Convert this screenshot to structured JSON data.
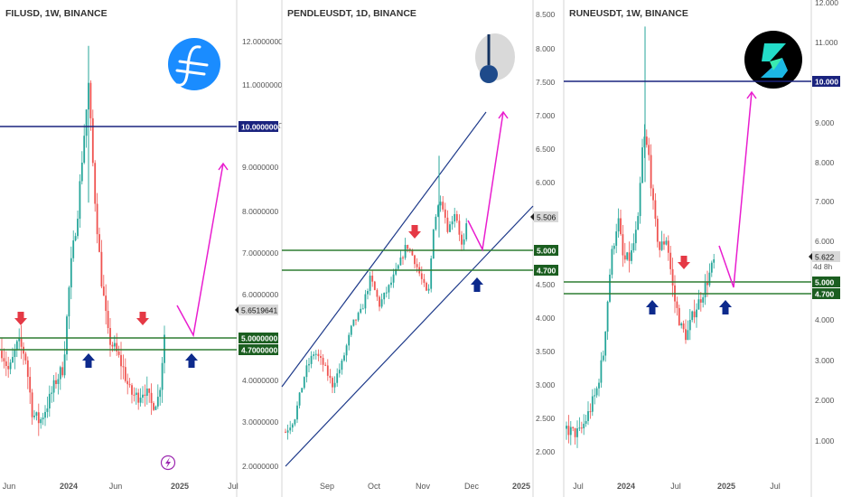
{
  "colors": {
    "up": "#26a69a",
    "down": "#ef5350",
    "level_line": "#2e7d32",
    "level_badge": "#1b5e20",
    "resistance": "#1a237e",
    "trend": "#1e3a8a",
    "projection": "#e91ecf",
    "arrow_down": "#e53945",
    "arrow_up": "#0d2a8c",
    "price_badge": "#d8d8d8",
    "axis_text": "#555555"
  },
  "chart_data": [
    {
      "type": "candlestick",
      "title": "FILUSD, 1W, BINANCE",
      "symbol_icon": "filecoin-logo-icon",
      "x_labels": [
        "Jun",
        "2024",
        "Jun",
        "2025",
        "Jul"
      ],
      "y_ticks": [
        "2.0000000",
        "3.0000000",
        "4.0000000",
        "5.0000000",
        "6.0000000",
        "7.0000000",
        "8.0000000",
        "9.0000000",
        "10.0000000",
        "11.0000000",
        "12.0000000"
      ],
      "ylim": [
        1.8,
        12.4
      ],
      "levels": [
        {
          "label": "5.0000000",
          "value": 5.0
        },
        {
          "label": "4.7000000",
          "value": 4.7
        }
      ],
      "resistance": {
        "label": "10.0000000",
        "value": 10.0
      },
      "last_price": {
        "label": "5.6519641",
        "value": 5.652
      },
      "annotation_icon": "lightning-bolt-icon"
    },
    {
      "type": "candlestick",
      "title": "PENDLEUSDT, 1D, BINANCE",
      "symbol_icon": "pendle-logo-icon",
      "x_labels": [
        "Sep",
        "Oct",
        "Nov",
        "Dec",
        "2025"
      ],
      "y_ticks": [
        "2.000",
        "2.500",
        "3.000",
        "3.500",
        "4.000",
        "4.500",
        "5.000",
        "5.500",
        "6.000",
        "6.500",
        "7.000",
        "7.500",
        "8.000",
        "8.500"
      ],
      "ylim": [
        1.9,
        8.6
      ],
      "levels": [
        {
          "label": "5.000",
          "value": 5.0
        },
        {
          "label": "4.700",
          "value": 4.7
        }
      ],
      "last_price": {
        "label": "5.506",
        "value": 5.506
      }
    },
    {
      "type": "candlestick",
      "title": "RUNEUSDT, 1W, BINANCE",
      "symbol_icon": "thorchain-logo-icon",
      "x_labels": [
        "Jul",
        "2024",
        "Jul",
        "2025",
        "Jul"
      ],
      "y_ticks": [
        "1.000",
        "2.000",
        "3.000",
        "4.000",
        "5.000",
        "6.000",
        "7.000",
        "8.000",
        "9.000",
        "10.000",
        "11.000",
        "12.000"
      ],
      "ylim": [
        0.3,
        12.1
      ],
      "levels": [
        {
          "label": "5.000",
          "value": 5.0
        },
        {
          "label": "4.700",
          "value": 4.7
        }
      ],
      "resistance": {
        "label": "10.000",
        "value": 10.0
      },
      "last_price": {
        "label": "5.622",
        "value": 5.622
      },
      "countdown": "4d 8h"
    }
  ]
}
